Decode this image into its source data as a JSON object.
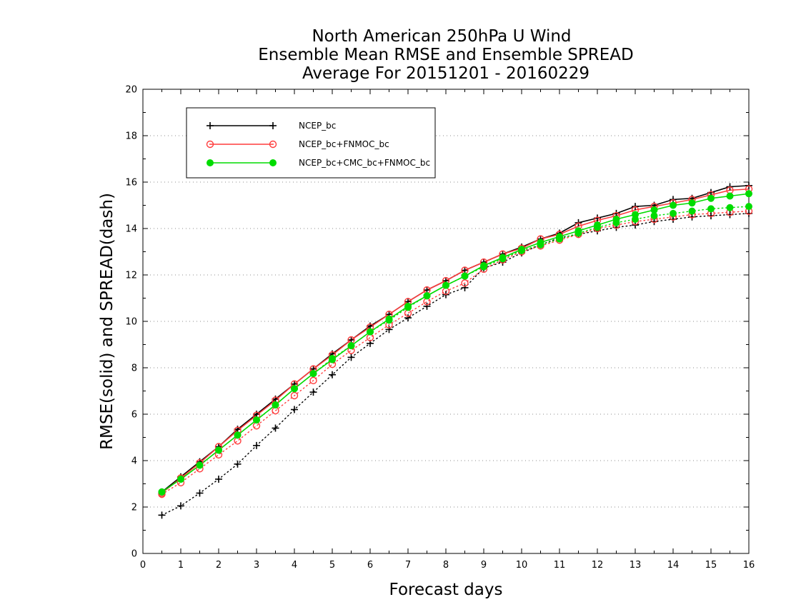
{
  "chart_data": {
    "type": "line",
    "title": [
      "North American 250hPa U Wind",
      "Ensemble Mean RMSE and Ensemble SPREAD",
      "Average For 20151201 - 20160229"
    ],
    "xlabel": "Forecast days",
    "ylabel": "RMSE(solid) and SPREAD(dash)",
    "xlim": [
      0,
      16
    ],
    "ylim": [
      0,
      20
    ],
    "xticks": [
      "0",
      "1",
      "2",
      "3",
      "4",
      "5",
      "6",
      "7",
      "8",
      "9",
      "10",
      "11",
      "12",
      "13",
      "14",
      "15",
      "16"
    ],
    "yticks": [
      "0",
      "2",
      "4",
      "6",
      "8",
      "10",
      "12",
      "14",
      "16",
      "18",
      "20"
    ],
    "grid": "horizontal dotted",
    "legend_position": "top-left",
    "x": [
      0.5,
      1,
      1.5,
      2,
      2.5,
      3,
      3.5,
      4,
      4.5,
      5,
      5.5,
      6,
      6.5,
      7,
      7.5,
      8,
      8.5,
      9,
      9.5,
      10,
      10.5,
      11,
      11.5,
      12,
      12.5,
      13,
      13.5,
      14,
      14.5,
      15,
      15.5,
      16
    ],
    "series": [
      {
        "name": "NCEP_bc",
        "color": "#000000",
        "marker": "plus",
        "rmse": [
          2.65,
          3.3,
          3.95,
          4.6,
          5.35,
          6.0,
          6.65,
          7.3,
          7.95,
          8.6,
          9.2,
          9.8,
          10.3,
          10.85,
          11.35,
          11.75,
          12.2,
          12.55,
          12.9,
          13.2,
          13.55,
          13.8,
          14.25,
          14.45,
          14.65,
          14.95,
          15.0,
          15.25,
          15.3,
          15.55,
          15.8,
          15.85
        ],
        "spread": [
          1.65,
          2.05,
          2.6,
          3.2,
          3.85,
          4.65,
          5.4,
          6.2,
          6.95,
          7.7,
          8.45,
          9.05,
          9.65,
          10.15,
          10.65,
          11.15,
          11.45,
          12.3,
          12.55,
          12.95,
          13.3,
          13.6,
          13.75,
          13.9,
          14.05,
          14.15,
          14.3,
          14.4,
          14.5,
          14.55,
          14.6,
          14.65
        ]
      },
      {
        "name": "NCEP_bc+FNMOC_bc",
        "color": "#ff3c3c",
        "marker": "open-circle",
        "rmse": [
          2.6,
          3.25,
          3.9,
          4.6,
          5.3,
          5.95,
          6.6,
          7.3,
          7.95,
          8.55,
          9.2,
          9.75,
          10.3,
          10.85,
          11.35,
          11.75,
          12.2,
          12.55,
          12.9,
          13.15,
          13.55,
          13.75,
          14.1,
          14.35,
          14.55,
          14.8,
          14.95,
          15.1,
          15.25,
          15.45,
          15.65,
          15.7
        ],
        "spread": [
          2.55,
          3.05,
          3.65,
          4.25,
          4.85,
          5.5,
          6.15,
          6.8,
          7.45,
          8.15,
          8.75,
          9.3,
          9.85,
          10.35,
          10.85,
          11.3,
          11.65,
          12.25,
          12.65,
          13.0,
          13.25,
          13.5,
          13.75,
          14.0,
          14.15,
          14.3,
          14.4,
          14.5,
          14.6,
          14.65,
          14.7,
          14.75
        ]
      },
      {
        "name": "NCEP_bc+CMC_bc+FNMOC_bc",
        "color": "#00dc00",
        "marker": "filled-circle",
        "rmse": [
          2.65,
          3.2,
          3.8,
          4.45,
          5.1,
          5.75,
          6.4,
          7.1,
          7.75,
          8.35,
          8.95,
          9.55,
          10.1,
          10.65,
          11.1,
          11.55,
          11.95,
          12.4,
          12.75,
          13.1,
          13.4,
          13.65,
          13.9,
          14.15,
          14.4,
          14.6,
          14.8,
          15.0,
          15.1,
          15.3,
          15.4,
          15.5
        ],
        "spread": [
          2.65,
          3.2,
          3.8,
          4.45,
          5.1,
          5.75,
          6.4,
          7.1,
          7.75,
          8.4,
          8.95,
          9.55,
          10.05,
          10.6,
          11.1,
          11.55,
          11.95,
          12.35,
          12.7,
          13.05,
          13.3,
          13.55,
          13.8,
          14.05,
          14.25,
          14.4,
          14.55,
          14.65,
          14.75,
          14.85,
          14.9,
          14.95
        ]
      }
    ]
  }
}
